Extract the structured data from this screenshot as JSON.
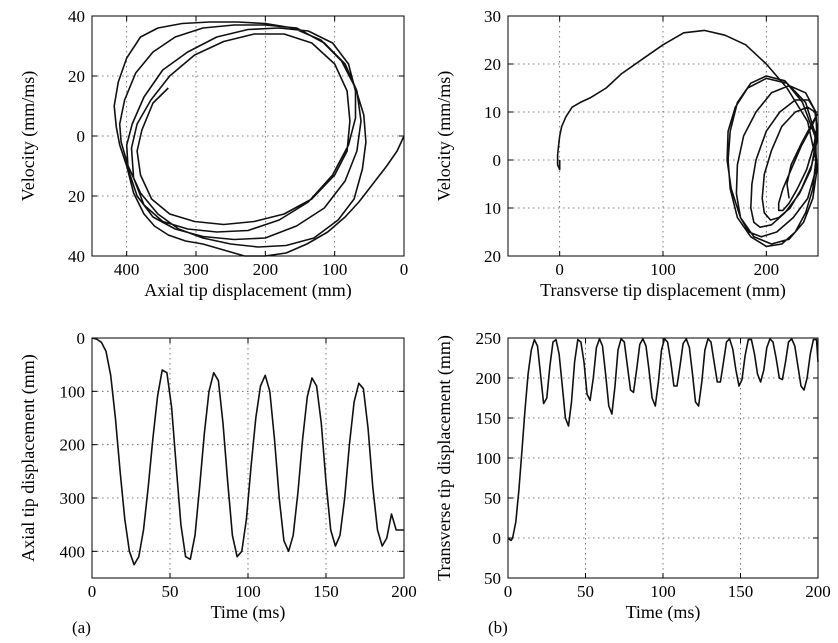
{
  "chart_data": [
    {
      "id": "axial_phase",
      "type": "line",
      "xlabel": "Axial tip displacement (mm)",
      "ylabel": "Velocity (mm/ms)",
      "xlim": [
        450,
        0
      ],
      "xticks": [
        400,
        300,
        200,
        100,
        0
      ],
      "xtick_labels": [
        "400",
        "300",
        "200",
        "100",
        "0"
      ],
      "ylim": [
        -40,
        40
      ],
      "yticks": [
        40,
        20,
        0,
        -20,
        -40
      ],
      "ytick_labels": [
        "40",
        "20",
        "0",
        "20",
        "40"
      ],
      "grid": true,
      "series": [
        {
          "x": [
            0,
            10,
            25,
            45,
            65,
            85,
            110,
            140,
            170,
            200,
            230,
            260,
            290,
            315,
            340,
            360,
            375,
            390,
            400,
            410,
            415,
            418,
            412,
            400,
            380,
            355,
            320,
            280,
            240,
            200,
            160,
            120,
            90,
            70,
            58,
            55,
            60,
            72,
            95,
            130,
            170,
            210,
            250,
            290,
            325,
            355,
            380,
            398,
            408,
            410,
            403,
            387,
            362,
            330,
            290,
            245,
            200,
            155,
            115,
            85,
            68,
            62,
            68,
            85,
            115,
            155,
            200,
            245,
            290,
            330,
            362,
            385,
            398,
            400,
            392,
            375,
            348,
            312,
            270,
            225,
            180,
            138,
            103,
            80,
            70,
            70,
            80,
            103,
            138,
            180,
            225,
            270,
            312,
            348,
            375,
            390,
            393,
            385,
            365,
            338,
            302,
            260,
            216,
            173,
            133,
            100,
            82,
            78,
            82,
            100,
            133,
            173,
            216,
            260,
            302,
            338,
            364,
            380,
            385,
            378,
            362,
            340
          ],
          "y": [
            0,
            -5,
            -10,
            -16,
            -22,
            -27,
            -32,
            -36,
            -39,
            -40,
            -40,
            -38,
            -36,
            -35,
            -33,
            -30,
            -26,
            -19,
            -10,
            -3,
            3,
            10,
            18,
            26,
            33,
            36,
            37.5,
            38,
            38,
            37.5,
            36,
            32,
            25,
            16,
            7,
            -2,
            -11,
            -21,
            -28,
            -34,
            -36.5,
            -37,
            -36,
            -34,
            -31,
            -26,
            -19,
            -10,
            -2,
            4,
            12,
            21,
            28,
            33,
            36,
            37,
            37,
            36,
            31,
            24,
            15,
            5,
            -5,
            -15,
            -24,
            -30,
            -34,
            -34.5,
            -33.5,
            -31,
            -27,
            -20,
            -11,
            -3,
            4,
            13,
            22,
            28,
            33,
            35.5,
            36,
            35,
            31,
            24,
            15,
            6,
            -3,
            -13,
            -22,
            -28,
            -31.5,
            -32,
            -31,
            -28.5,
            -23,
            -14,
            -4,
            4,
            12,
            20,
            27,
            31.5,
            34,
            34,
            31,
            24,
            15,
            5,
            -5,
            -13,
            -21,
            -26,
            -28.5,
            -29.5,
            -28.5,
            -26,
            -21,
            -13,
            -5,
            2,
            11,
            16
          ]
        }
      ]
    },
    {
      "id": "transverse_phase",
      "type": "line",
      "xlabel": "Transverse tip displacement (mm)",
      "ylabel": "Velocity (mm/ms)",
      "xlim": [
        -50,
        250
      ],
      "xticks": [
        0,
        100,
        200
      ],
      "xtick_labels": [
        "0",
        "100",
        "200"
      ],
      "ylim": [
        -20,
        30
      ],
      "yticks": [
        30,
        20,
        10,
        0,
        -10,
        -20
      ],
      "ytick_labels": [
        "30",
        "20",
        "10",
        "0",
        "10",
        "20"
      ],
      "grid": true,
      "series": [
        {
          "x": [
            0,
            0,
            -2,
            -2,
            -1,
            0,
            2,
            6,
            12,
            20,
            30,
            45,
            60,
            80,
            100,
            120,
            140,
            160,
            180,
            200,
            220,
            240,
            248,
            245,
            238,
            228,
            215,
            200,
            185,
            172,
            165,
            163,
            165,
            172,
            185,
            200,
            218,
            235,
            247,
            249,
            245,
            236,
            222,
            205,
            188,
            175,
            166,
            162,
            163,
            170,
            182,
            200,
            220,
            238,
            248,
            248,
            240,
            226,
            210,
            195,
            183,
            175,
            171,
            172,
            178,
            190,
            205,
            222,
            238,
            248,
            249,
            243,
            232,
            218,
            205,
            194,
            188,
            185,
            186,
            190,
            200,
            213,
            228,
            241,
            248,
            249,
            244,
            234,
            223,
            212,
            204,
            198,
            196,
            198,
            205,
            215,
            228,
            240,
            247,
            249,
            246,
            239,
            230,
            222,
            216,
            212,
            212,
            216,
            224,
            234,
            244,
            249,
            249,
            244,
            234,
            224,
            220,
            222
          ],
          "y": [
            0,
            -2,
            -1,
            1,
            3,
            5,
            7,
            9,
            11,
            12,
            13,
            15,
            18,
            21,
            24,
            26.5,
            27,
            26,
            24,
            20,
            15,
            8,
            0,
            -6,
            -11,
            -15,
            -17.5,
            -18,
            -16,
            -12,
            -6,
            0,
            6,
            12,
            16,
            17.5,
            16.5,
            12,
            5,
            -2,
            -8,
            -13,
            -16.5,
            -17.5,
            -16,
            -12,
            -6,
            0,
            6,
            11,
            15,
            17,
            16,
            12,
            5,
            -2,
            -8,
            -12,
            -15,
            -16,
            -15,
            -12,
            -7,
            -1,
            5,
            10,
            14,
            15.5,
            14,
            10,
            4,
            -2,
            -7,
            -11,
            -13.5,
            -14,
            -13,
            -10,
            -5,
            0,
            6,
            10,
            12.5,
            12.5,
            10,
            5,
            -1,
            -6,
            -10,
            -12,
            -12.5,
            -11,
            -8,
            -3,
            2,
            7,
            10,
            11,
            10,
            7,
            3,
            -2,
            -6,
            -9,
            -10.5,
            -10.5,
            -9,
            -6,
            -2,
            3,
            7,
            9.5,
            9.5,
            7.5,
            3.5,
            -1,
            -5,
            -8
          ]
        }
      ]
    },
    {
      "id": "axial_time",
      "type": "line",
      "xlabel": "Time (ms)",
      "ylabel": "Axial tip displacement (mm)",
      "xlim": [
        0,
        200
      ],
      "xticks": [
        0,
        50,
        100,
        150,
        200
      ],
      "xtick_labels": [
        "0",
        "50",
        "100",
        "150",
        "200"
      ],
      "ylim": [
        450,
        0
      ],
      "yticks": [
        0,
        100,
        200,
        300,
        400
      ],
      "ytick_labels": [
        "0",
        "100",
        "200",
        "300",
        "400"
      ],
      "grid": true,
      "series": [
        {
          "x": [
            0,
            3,
            6,
            9,
            12,
            15,
            18,
            21,
            24,
            27,
            30,
            33,
            36,
            39,
            42,
            45,
            48,
            51,
            54,
            57,
            60,
            63,
            66,
            69,
            72,
            75,
            78,
            81,
            84,
            87,
            90,
            93,
            96,
            99,
            102,
            105,
            108,
            111,
            114,
            117,
            120,
            123,
            126,
            129,
            132,
            135,
            138,
            141,
            144,
            147,
            150,
            153,
            156,
            159,
            162,
            165,
            168,
            171,
            174,
            177,
            180,
            183,
            186,
            189,
            192,
            195,
            198,
            200
          ],
          "y": [
            0,
            2,
            8,
            25,
            70,
            150,
            250,
            340,
            400,
            425,
            410,
            360,
            280,
            190,
            110,
            60,
            65,
            130,
            240,
            350,
            410,
            415,
            370,
            280,
            180,
            100,
            65,
            80,
            160,
            270,
            370,
            410,
            400,
            340,
            240,
            150,
            90,
            70,
            100,
            190,
            300,
            380,
            400,
            370,
            290,
            190,
            110,
            75,
            90,
            160,
            270,
            360,
            390,
            370,
            300,
            200,
            120,
            85,
            95,
            170,
            280,
            360,
            390,
            375,
            330,
            360,
            360,
            360
          ]
        }
      ]
    },
    {
      "id": "transverse_time",
      "type": "line",
      "xlabel": "Time (ms)",
      "ylabel": "Transverse tip displacement (mm)",
      "xlim": [
        0,
        200
      ],
      "xticks": [
        0,
        50,
        100,
        150,
        200
      ],
      "xtick_labels": [
        "0",
        "50",
        "100",
        "150",
        "200"
      ],
      "ylim": [
        -50,
        250
      ],
      "yticks": [
        250,
        200,
        150,
        100,
        50,
        0,
        -50
      ],
      "ytick_labels": [
        "250",
        "200",
        "150",
        "100",
        "50",
        "0",
        "50"
      ],
      "grid": true,
      "series": [
        {
          "x": [
            0,
            1,
            2,
            3,
            5,
            7,
            9,
            11,
            13,
            15,
            17,
            19,
            21,
            23,
            25,
            27,
            29,
            31,
            33,
            35,
            37,
            39,
            41,
            43,
            45,
            47,
            49,
            51,
            53,
            55,
            57,
            59,
            61,
            63,
            65,
            67,
            69,
            71,
            73,
            75,
            77,
            79,
            81,
            83,
            85,
            87,
            89,
            91,
            93,
            95,
            97,
            99,
            101,
            103,
            105,
            107,
            109,
            111,
            113,
            115,
            117,
            119,
            121,
            123,
            125,
            127,
            129,
            131,
            133,
            135,
            137,
            139,
            141,
            143,
            145,
            147,
            149,
            151,
            153,
            155,
            157,
            159,
            161,
            163,
            165,
            167,
            169,
            171,
            173,
            175,
            177,
            179,
            181,
            183,
            185,
            187,
            189,
            191,
            193,
            195,
            197,
            199,
            200
          ],
          "y": [
            0,
            -2,
            -3,
            0,
            20,
            60,
            110,
            160,
            205,
            235,
            248,
            240,
            205,
            168,
            175,
            215,
            245,
            248,
            230,
            190,
            150,
            140,
            170,
            220,
            248,
            245,
            220,
            180,
            172,
            200,
            238,
            249,
            240,
            205,
            165,
            155,
            190,
            235,
            249,
            245,
            215,
            185,
            182,
            210,
            242,
            249,
            240,
            210,
            175,
            165,
            195,
            235,
            249,
            245,
            220,
            190,
            190,
            215,
            243,
            249,
            238,
            205,
            170,
            165,
            195,
            235,
            249,
            245,
            220,
            195,
            195,
            220,
            245,
            249,
            236,
            210,
            190,
            198,
            228,
            248,
            248,
            230,
            205,
            195,
            210,
            238,
            249,
            245,
            225,
            200,
            198,
            220,
            245,
            249,
            240,
            215,
            190,
            185,
            200,
            230,
            248,
            248,
            220
          ]
        }
      ]
    }
  ],
  "panel_labels": [
    "(a)",
    "(b)"
  ]
}
